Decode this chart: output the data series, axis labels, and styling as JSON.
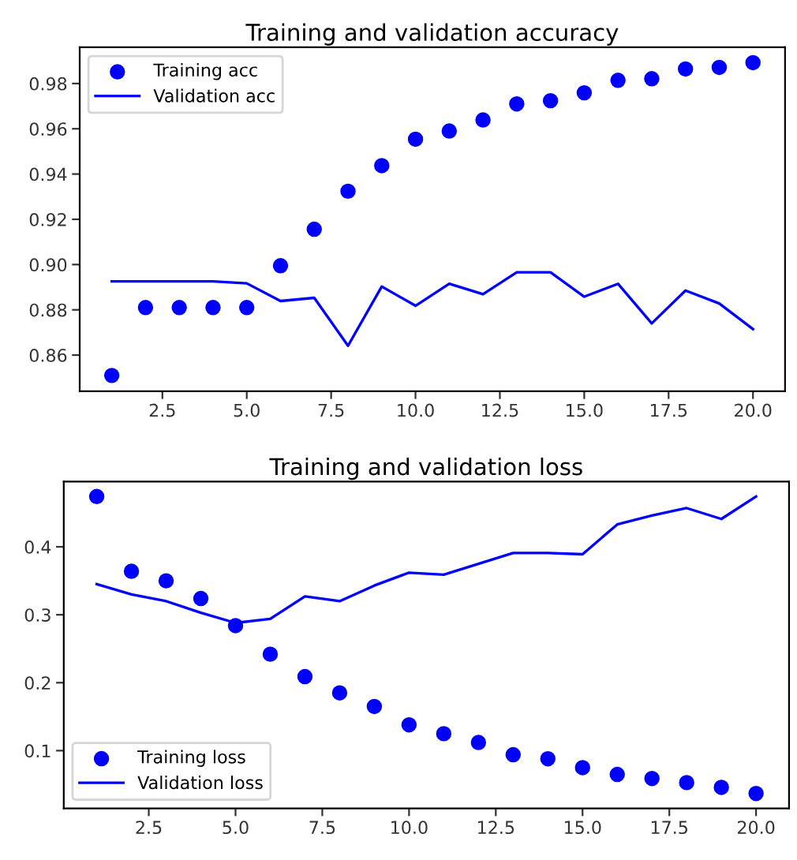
{
  "chart_data": [
    {
      "type": "line",
      "title": "Training and validation accuracy",
      "x": [
        1,
        2,
        3,
        4,
        5,
        6,
        7,
        8,
        9,
        10,
        11,
        12,
        13,
        14,
        15,
        16,
        17,
        18,
        19,
        20
      ],
      "series": [
        {
          "name": "Training acc",
          "type": "scatter",
          "marker": "circle",
          "color": "#0000ff",
          "values": [
            0.851,
            0.881,
            0.881,
            0.881,
            0.881,
            0.8995,
            0.9156,
            0.9324,
            0.9437,
            0.9554,
            0.959,
            0.9639,
            0.971,
            0.9724,
            0.9759,
            0.9814,
            0.9821,
            0.9864,
            0.9871,
            0.9892
          ]
        },
        {
          "name": "Validation acc",
          "marker": "none",
          "color": "#0000ff",
          "values": [
            0.8926,
            0.8926,
            0.8926,
            0.8926,
            0.8917,
            0.8839,
            0.8853,
            0.8641,
            0.8903,
            0.8818,
            0.8915,
            0.8869,
            0.8966,
            0.8966,
            0.8858,
            0.8915,
            0.874,
            0.8885,
            0.8828,
            0.8715
          ]
        }
      ],
      "xlim": [
        0.05,
        20.95
      ],
      "xticks": [
        {
          "value": 2.5,
          "label": "2.5"
        },
        {
          "value": 5,
          "label": "5.0"
        },
        {
          "value": 7.5,
          "label": "7.5"
        },
        {
          "value": 10,
          "label": "10.0"
        },
        {
          "value": 12.5,
          "label": "12.5"
        },
        {
          "value": 15,
          "label": "15.0"
        },
        {
          "value": 17.5,
          "label": "17.5"
        },
        {
          "value": 20,
          "label": "20.0"
        }
      ],
      "ylim": [
        0.844,
        0.996
      ],
      "yticks": [
        0.86,
        0.88,
        {
          "value": 0.9,
          "label": "0.90"
        },
        0.92,
        0.94,
        0.96,
        0.98
      ],
      "legend": "top left",
      "grid": false
    },
    {
      "type": "line",
      "title": "Training and validation loss",
      "x": [
        1,
        2,
        3,
        4,
        5,
        6,
        7,
        8,
        9,
        10,
        11,
        12,
        13,
        14,
        15,
        16,
        17,
        18,
        19,
        20
      ],
      "series": [
        {
          "name": "Training loss",
          "type": "scatter",
          "marker": "circle",
          "color": "#0000ff",
          "values": [
            0.474,
            0.364,
            0.35,
            0.324,
            0.284,
            0.242,
            0.209,
            0.185,
            0.165,
            0.138,
            0.125,
            0.112,
            0.094,
            0.088,
            0.075,
            0.065,
            0.059,
            0.053,
            0.046,
            0.037
          ]
        },
        {
          "name": "Validation loss",
          "marker": "none",
          "color": "#0000ff",
          "values": [
            0.345,
            0.33,
            0.32,
            0.303,
            0.288,
            0.294,
            0.327,
            0.32,
            0.343,
            0.362,
            0.359,
            0.375,
            0.391,
            0.391,
            0.389,
            0.433,
            0.446,
            0.457,
            0.441,
            0.474
          ]
        }
      ],
      "xlim": [
        0.05,
        20.95
      ],
      "xticks": [
        {
          "value": 2.5,
          "label": "2.5"
        },
        {
          "value": 5,
          "label": "5.0"
        },
        {
          "value": 7.5,
          "label": "7.5"
        },
        {
          "value": 10,
          "label": "10.0"
        },
        {
          "value": 12.5,
          "label": "12.5"
        },
        {
          "value": 15,
          "label": "15.0"
        },
        {
          "value": 17.5,
          "label": "17.5"
        },
        {
          "value": 20,
          "label": "20.0"
        }
      ],
      "ylim": [
        0.015,
        0.496
      ],
      "yticks": [
        0.1,
        0.2,
        0.3,
        0.4
      ],
      "legend": "bottom left",
      "grid": false
    }
  ]
}
